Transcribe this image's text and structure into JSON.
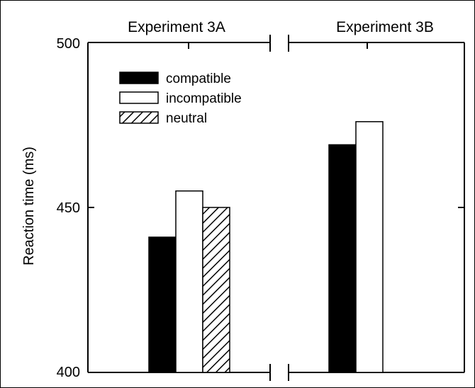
{
  "chart_data": {
    "type": "bar",
    "ylabel": "Reaction time (ms)",
    "ylim": [
      400,
      500
    ],
    "yticks": [
      "400",
      "450",
      "500"
    ],
    "grid": false,
    "legend": {
      "placement": "top-left",
      "entries": [
        "compatible",
        "incompatible",
        "neutral"
      ]
    },
    "series": [
      {
        "name": "compatible",
        "fill": "solid-black"
      },
      {
        "name": "incompatible",
        "fill": "white"
      },
      {
        "name": "neutral",
        "fill": "diagonal-hatch"
      }
    ],
    "panels": [
      {
        "title": "Experiment 3A",
        "values": {
          "compatible": 441,
          "incompatible": 455,
          "neutral": 450
        }
      },
      {
        "title": "Experiment 3B",
        "values": {
          "compatible": 469,
          "incompatible": 476
        }
      }
    ]
  },
  "colors": {
    "black": "#000000",
    "white": "#ffffff"
  }
}
